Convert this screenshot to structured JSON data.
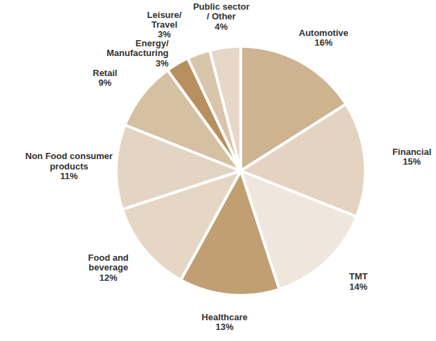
{
  "chart_data": {
    "type": "pie",
    "categories": [
      "Automotive",
      "Financial",
      "TMT",
      "Healthcare",
      "Food and\nbeverage",
      "Non Food consumer\nproducts",
      "Retail",
      "Energy/\nManufacturing",
      "Leisure/\nTravel",
      "Public sector\n/ Other"
    ],
    "values": [
      16,
      15,
      14,
      13,
      12,
      11,
      9,
      3,
      3,
      4
    ],
    "value_labels": [
      "16%",
      "15%",
      "14%",
      "13%",
      "12%",
      "11%",
      "9%",
      "3%",
      "3%",
      "4%"
    ],
    "colors": [
      "#cdb390",
      "#e3d3c0",
      "#efe7dd",
      "#c19f72",
      "#e6d6c4",
      "#e4d4c3",
      "#d6c0a2",
      "#b8905f",
      "#d9c5ab",
      "#e6d7c8"
    ],
    "data_labels": true
  }
}
